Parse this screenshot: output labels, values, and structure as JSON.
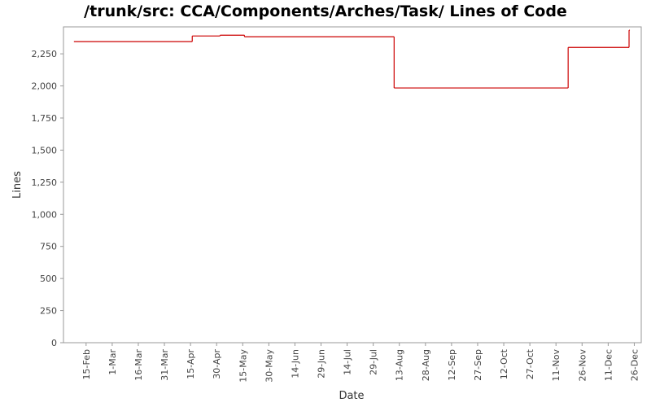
{
  "chart_data": {
    "type": "line",
    "step": true,
    "title": "/trunk/src: CCA/Components/Arches/Task/ Lines of Code",
    "x_label": "Date",
    "y_label": "Lines",
    "x": [
      -7,
      61,
      77,
      91,
      177,
      277,
      312
    ],
    "series": [
      {
        "name": "Lines",
        "color": "#cc0000",
        "values": [
          2345,
          2389,
          2395,
          2383,
          1984,
          2300,
          2434
        ]
      }
    ],
    "xlim": [
      -13,
      319
    ],
    "ylim": [
      0,
      2460
    ],
    "xticks": [
      {
        "value": 0,
        "label": "15-Feb"
      },
      {
        "value": 15,
        "label": "1-Mar"
      },
      {
        "value": 30,
        "label": "16-Mar"
      },
      {
        "value": 45,
        "label": "31-Mar"
      },
      {
        "value": 60,
        "label": "15-Apr"
      },
      {
        "value": 75,
        "label": "30-Apr"
      },
      {
        "value": 90,
        "label": "15-May"
      },
      {
        "value": 105,
        "label": "30-May"
      },
      {
        "value": 120,
        "label": "14-Jun"
      },
      {
        "value": 135,
        "label": "29-Jun"
      },
      {
        "value": 150,
        "label": "14-Jul"
      },
      {
        "value": 165,
        "label": "29-Jul"
      },
      {
        "value": 180,
        "label": "13-Aug"
      },
      {
        "value": 195,
        "label": "28-Aug"
      },
      {
        "value": 210,
        "label": "12-Sep"
      },
      {
        "value": 225,
        "label": "27-Sep"
      },
      {
        "value": 240,
        "label": "12-Oct"
      },
      {
        "value": 255,
        "label": "27-Oct"
      },
      {
        "value": 270,
        "label": "11-Nov"
      },
      {
        "value": 285,
        "label": "26-Nov"
      },
      {
        "value": 300,
        "label": "11-Dec"
      },
      {
        "value": 315,
        "label": "26-Dec"
      }
    ],
    "yticks": [
      0,
      250,
      500,
      750,
      {
        "value": 1000,
        "label": "1,000"
      },
      {
        "value": 1250,
        "label": "1,250"
      },
      {
        "value": 1500,
        "label": "1,500"
      },
      {
        "value": 1750,
        "label": "1,750"
      },
      {
        "value": 2000,
        "label": "2,000"
      },
      {
        "value": 2250,
        "label": "2,250"
      }
    ]
  }
}
